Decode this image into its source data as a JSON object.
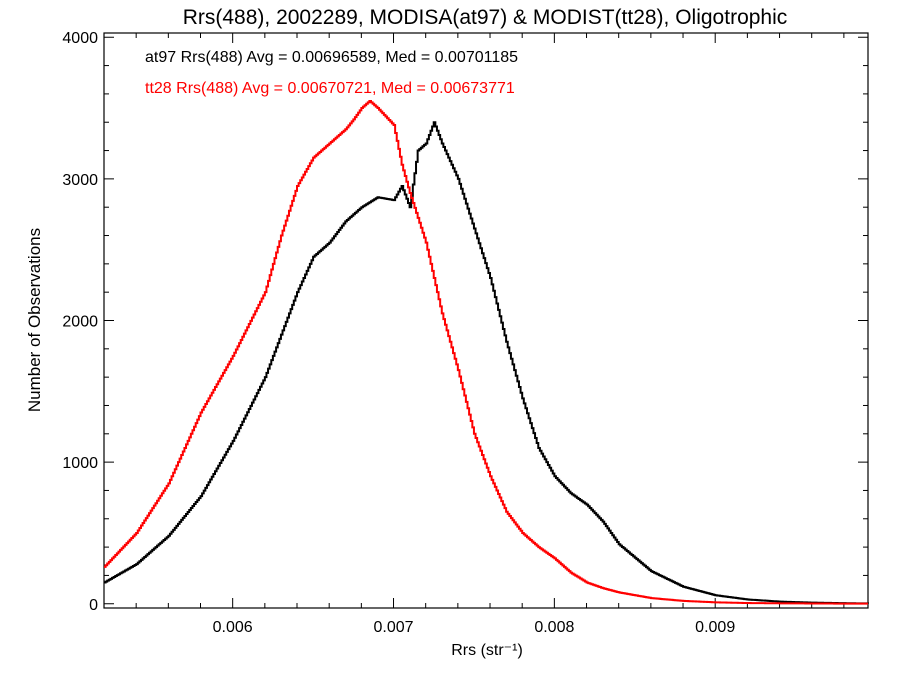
{
  "chart_data": {
    "type": "line",
    "style": "histogram-steps",
    "title": "Rrs(488), 2002289, MODISA(at97) & MODIST(tt28), Oligotrophic",
    "xlabel": "Rrs (str⁻¹)",
    "ylabel": "Number of Observations",
    "xlim": [
      0.0052,
      0.00995
    ],
    "ylim": [
      -30,
      4030
    ],
    "x_ticks": [
      0.006,
      0.007,
      0.008,
      0.009
    ],
    "x_tick_labels": [
      "0.006",
      "0.007",
      "0.008",
      "0.009"
    ],
    "y_ticks": [
      0,
      1000,
      2000,
      3000,
      4000
    ],
    "y_tick_labels": [
      "0",
      "1000",
      "2000",
      "3000",
      "4000"
    ],
    "x_minor_step": 0.0002,
    "y_minor_step": 200,
    "grid": false,
    "series": [
      {
        "name": "at97",
        "label": "at97 Rrs(488) Avg = 0.00696589, Med = 0.00701185",
        "color": "#000000",
        "x": [
          0.0052,
          0.0054,
          0.0056,
          0.0058,
          0.006,
          0.0062,
          0.0063,
          0.0064,
          0.0065,
          0.0066,
          0.0067,
          0.0068,
          0.0069,
          0.007,
          0.00705,
          0.0071,
          0.00715,
          0.0072,
          0.00725,
          0.0073,
          0.0074,
          0.0075,
          0.0076,
          0.0077,
          0.0078,
          0.0079,
          0.008,
          0.0081,
          0.0082,
          0.0083,
          0.0084,
          0.0086,
          0.0088,
          0.009,
          0.0092,
          0.0094,
          0.0096,
          0.0098,
          0.00995
        ],
        "y": [
          150,
          280,
          480,
          760,
          1150,
          1600,
          1900,
          2200,
          2450,
          2550,
          2700,
          2800,
          2870,
          2850,
          2950,
          2800,
          3200,
          3250,
          3400,
          3250,
          3000,
          2650,
          2300,
          1850,
          1450,
          1100,
          900,
          780,
          700,
          580,
          420,
          230,
          120,
          60,
          30,
          15,
          8,
          4,
          2
        ]
      },
      {
        "name": "tt28",
        "label": "tt28 Rrs(488) Avg = 0.00670721, Med = 0.00673771",
        "color": "#ff0000",
        "x": [
          0.0052,
          0.0054,
          0.0056,
          0.0058,
          0.006,
          0.0062,
          0.0063,
          0.0064,
          0.0065,
          0.0066,
          0.0067,
          0.00675,
          0.0068,
          0.00685,
          0.0069,
          0.007,
          0.00705,
          0.0071,
          0.0072,
          0.0073,
          0.0074,
          0.0075,
          0.0076,
          0.0077,
          0.0078,
          0.0079,
          0.008,
          0.0081,
          0.0082,
          0.0083,
          0.0084,
          0.0085,
          0.0086,
          0.0088,
          0.009,
          0.0092,
          0.0094,
          0.0096,
          0.0098,
          0.00995
        ],
        "y": [
          260,
          500,
          850,
          1350,
          1750,
          2200,
          2600,
          2950,
          3150,
          3250,
          3350,
          3420,
          3500,
          3550,
          3500,
          3380,
          3100,
          2900,
          2550,
          2050,
          1650,
          1200,
          900,
          650,
          500,
          400,
          320,
          220,
          150,
          110,
          80,
          60,
          40,
          20,
          10,
          5,
          3,
          2,
          1,
          1
        ]
      }
    ]
  }
}
